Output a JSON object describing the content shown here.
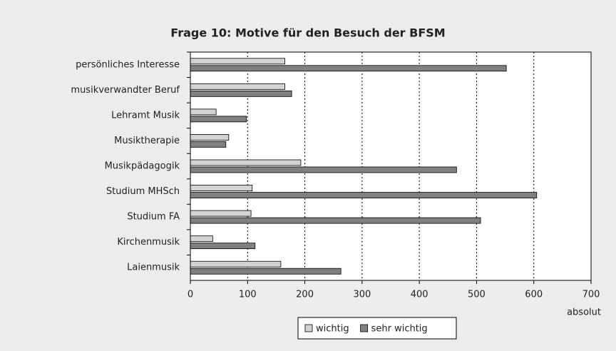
{
  "chart_data": {
    "type": "hbar",
    "title": "Frage 10: Motive für den Besuch der BFSM",
    "categories": [
      "persönliches Interesse",
      "musikverwandter Beruf",
      "Lehramt Musik",
      "Musiktherapie",
      "Musikpädagogik",
      "Studium MHSch",
      "Studium FA",
      "Kirchenmusik",
      "Laienmusik"
    ],
    "series": [
      {
        "name": "wichtig",
        "color": "#d3d3d3",
        "values": [
          165,
          165,
          45,
          67,
          193,
          108,
          106,
          39,
          158
        ]
      },
      {
        "name": "sehr wichtig",
        "color": "#808080",
        "values": [
          552,
          177,
          98,
          62,
          465,
          605,
          507,
          113,
          263
        ]
      }
    ],
    "xlabel": "absolut",
    "xlim": [
      0,
      700
    ],
    "xticks": [
      0,
      100,
      200,
      300,
      400,
      500,
      600,
      700
    ],
    "grid": true,
    "legend": "bottom"
  }
}
